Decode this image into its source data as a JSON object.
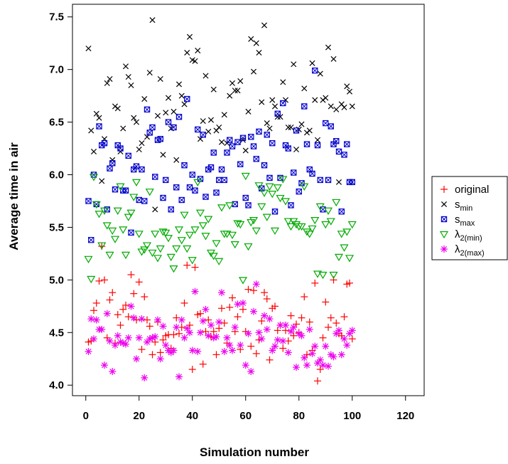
{
  "chart_data": {
    "type": "scatter",
    "title": "",
    "xlabel": "Simulation number",
    "ylabel": "Average time in air",
    "xlim": [
      -5,
      127
    ],
    "ylim": [
      3.9,
      7.62
    ],
    "xticks": [
      0,
      20,
      40,
      60,
      80,
      100,
      120
    ],
    "yticks": [
      4.0,
      4.5,
      5.0,
      5.5,
      6.0,
      6.5,
      7.0,
      7.5
    ],
    "ytick_labels": [
      "4.0",
      "4.5",
      "5.0",
      "5.5",
      "6.0",
      "6.5",
      "7.0",
      "7.5"
    ],
    "grid": false,
    "legend_position": "right",
    "series": [
      {
        "name": "original",
        "legend_main": "original",
        "legend_sub": "",
        "marker": "plus",
        "color": "#ff0000",
        "x": [
          1,
          2,
          3,
          4,
          5,
          6,
          7,
          8,
          9,
          10,
          11,
          12,
          13,
          14,
          15,
          16,
          17,
          18,
          19,
          20,
          21,
          22,
          23,
          24,
          25,
          26,
          27,
          28,
          29,
          30,
          31,
          32,
          33,
          34,
          35,
          36,
          37,
          38,
          39,
          40,
          41,
          42,
          43,
          44,
          45,
          46,
          47,
          48,
          49,
          50,
          51,
          52,
          53,
          54,
          55,
          56,
          57,
          58,
          59,
          60,
          61,
          62,
          63,
          64,
          65,
          66,
          67,
          68,
          69,
          70,
          71,
          72,
          73,
          74,
          75,
          76,
          77,
          78,
          79,
          80,
          81,
          82,
          83,
          84,
          85,
          86,
          87,
          88,
          89,
          90,
          91,
          92,
          93,
          94,
          95,
          96,
          97,
          98,
          99,
          100
        ],
        "y": [
          4.41,
          4.42,
          4.71,
          4.78,
          4.99,
          5.32,
          5.0,
          4.45,
          4.81,
          4.88,
          4.4,
          4.67,
          4.57,
          4.72,
          4.76,
          4.65,
          5.05,
          4.87,
          4.62,
          4.98,
          4.34,
          4.84,
          4.62,
          4.56,
          4.29,
          4.41,
          4.6,
          4.31,
          4.43,
          4.47,
          4.48,
          4.35,
          4.48,
          4.64,
          4.49,
          4.55,
          4.78,
          5.14,
          4.57,
          4.15,
          5.12,
          4.67,
          4.68,
          4.2,
          4.51,
          4.62,
          4.46,
          4.51,
          4.29,
          4.54,
          4.73,
          4.59,
          4.4,
          4.74,
          4.83,
          4.51,
          4.65,
          4.34,
          4.72,
          4.51,
          4.91,
          4.37,
          4.9,
          4.3,
          4.43,
          4.61,
          4.88,
          4.82,
          4.24,
          4.73,
          4.75,
          4.52,
          4.57,
          4.35,
          4.52,
          4.42,
          4.66,
          4.47,
          4.58,
          4.5,
          4.64,
          4.84,
          4.29,
          4.6,
          4.33,
          4.97,
          4.04,
          4.15,
          4.45,
          4.79,
          4.55,
          4.64,
          5.0,
          4.59,
          4.49,
          4.47,
          4.65,
          4.96,
          4.97,
          4.44
        ]
      },
      {
        "name": "s_min",
        "legend_main": "s",
        "legend_sub": "min",
        "marker": "x",
        "color": "#000000",
        "x": [
          1,
          2,
          3,
          4,
          5,
          6,
          7,
          8,
          9,
          10,
          11,
          12,
          13,
          14,
          15,
          16,
          17,
          18,
          19,
          20,
          21,
          22,
          23,
          24,
          25,
          26,
          27,
          28,
          29,
          30,
          31,
          32,
          33,
          34,
          35,
          36,
          37,
          38,
          39,
          40,
          41,
          42,
          43,
          44,
          45,
          46,
          47,
          48,
          49,
          50,
          51,
          52,
          53,
          54,
          55,
          56,
          57,
          58,
          59,
          60,
          61,
          62,
          63,
          64,
          65,
          66,
          67,
          68,
          69,
          70,
          71,
          72,
          73,
          74,
          75,
          76,
          77,
          78,
          79,
          80,
          81,
          82,
          83,
          84,
          85,
          86,
          87,
          88,
          89,
          90,
          91,
          92,
          93,
          94,
          95,
          96,
          97,
          98,
          99,
          100
        ],
        "y": [
          7.2,
          6.42,
          6.22,
          6.58,
          6.54,
          5.94,
          6.34,
          6.87,
          6.91,
          6.14,
          6.65,
          6.63,
          6.22,
          6.44,
          7.03,
          6.93,
          6.85,
          6.54,
          6.5,
          6.24,
          6.3,
          6.72,
          6.36,
          6.97,
          7.47,
          5.67,
          6.56,
          6.91,
          6.19,
          6.59,
          6.73,
          6.44,
          6.6,
          6.14,
          6.86,
          6.75,
          6.67,
          7.16,
          7.31,
          7.09,
          7.08,
          7.18,
          6.34,
          6.51,
          6.94,
          6.41,
          6.52,
          6.81,
          6.42,
          6.45,
          6.31,
          6.57,
          6.3,
          6.75,
          6.87,
          6.8,
          6.8,
          6.89,
          6.33,
          6.23,
          6.6,
          7.29,
          6.98,
          7.25,
          7.16,
          6.69,
          7.42,
          6.49,
          6.44,
          6.71,
          6.65,
          6.55,
          6.55,
          6.88,
          6.71,
          6.45,
          6.45,
          7.05,
          6.24,
          6.43,
          6.48,
          6.82,
          6.4,
          6.42,
          7.06,
          6.71,
          6.33,
          6.96,
          6.71,
          6.73,
          7.21,
          6.65,
          7.1,
          6.62,
          5.93,
          6.67,
          6.64,
          6.84,
          6.79,
          6.65
        ]
      },
      {
        "name": "s_max",
        "legend_main": "s",
        "legend_sub": "max",
        "marker": "boxed-x",
        "color": "#0000cc",
        "x": [
          1,
          2,
          3,
          4,
          5,
          6,
          7,
          8,
          9,
          10,
          11,
          12,
          13,
          14,
          15,
          16,
          17,
          18,
          19,
          20,
          21,
          22,
          23,
          24,
          25,
          26,
          27,
          28,
          29,
          30,
          31,
          32,
          33,
          34,
          35,
          36,
          37,
          38,
          39,
          40,
          41,
          42,
          43,
          44,
          45,
          46,
          47,
          48,
          49,
          50,
          51,
          52,
          53,
          54,
          55,
          56,
          57,
          58,
          59,
          60,
          61,
          62,
          63,
          64,
          65,
          66,
          67,
          68,
          69,
          70,
          71,
          72,
          73,
          74,
          75,
          76,
          77,
          78,
          79,
          80,
          81,
          82,
          83,
          84,
          85,
          86,
          87,
          88,
          89,
          90,
          91,
          92,
          93,
          94,
          95,
          96,
          97,
          98,
          99,
          100
        ],
        "y": [
          5.75,
          5.38,
          6.0,
          5.72,
          6.46,
          6.28,
          6.3,
          5.67,
          6.06,
          6.11,
          5.86,
          6.28,
          6.25,
          5.85,
          5.85,
          6.18,
          5.45,
          6.05,
          6.08,
          5.76,
          6.05,
          5.75,
          6.62,
          6.4,
          6.45,
          5.98,
          6.33,
          6.34,
          5.78,
          5.95,
          6.5,
          5.67,
          6.45,
          5.88,
          6.55,
          5.76,
          6.09,
          6.72,
          5.88,
          6.0,
          5.85,
          6.43,
          5.96,
          6.38,
          5.79,
          6.05,
          6.07,
          6.21,
          5.83,
          5.95,
          6.05,
          5.95,
          6.21,
          6.33,
          6.27,
          5.72,
          6.31,
          6.1,
          6.35,
          5.78,
          5.71,
          6.36,
          6.27,
          6.15,
          6.41,
          5.87,
          6.09,
          6.38,
          5.97,
          6.3,
          5.65,
          6.58,
          5.97,
          6.68,
          6.28,
          6.25,
          5.71,
          6.02,
          6.42,
          5.84,
          5.92,
          6.65,
          6.29,
          6.05,
          6.01,
          6.99,
          6.28,
          5.95,
          5.67,
          6.49,
          5.95,
          6.46,
          6.29,
          6.32,
          6.22,
          5.65,
          6.19,
          6.29,
          5.93,
          5.93
        ]
      },
      {
        "name": "lambda_2(min)",
        "legend_main": "λ",
        "legend_sub": "2(min)",
        "marker": "triangle-down",
        "color": "#00aa00",
        "x": [
          1,
          2,
          3,
          4,
          5,
          6,
          7,
          8,
          9,
          10,
          11,
          12,
          13,
          14,
          15,
          16,
          17,
          18,
          19,
          20,
          21,
          22,
          23,
          24,
          25,
          26,
          27,
          28,
          29,
          30,
          31,
          32,
          33,
          34,
          35,
          36,
          37,
          38,
          39,
          40,
          41,
          42,
          43,
          44,
          45,
          46,
          47,
          48,
          49,
          50,
          51,
          52,
          53,
          54,
          55,
          56,
          57,
          58,
          59,
          60,
          61,
          62,
          63,
          64,
          65,
          66,
          67,
          68,
          69,
          70,
          71,
          72,
          73,
          74,
          75,
          76,
          77,
          78,
          79,
          80,
          81,
          82,
          83,
          84,
          85,
          86,
          87,
          88,
          89,
          90,
          91,
          92,
          93,
          94,
          95,
          96,
          97,
          98,
          99,
          100
        ],
        "y": [
          5.2,
          5.01,
          5.98,
          5.72,
          5.63,
          5.33,
          5.66,
          5.52,
          5.24,
          5.47,
          5.39,
          5.66,
          5.89,
          5.48,
          5.24,
          5.6,
          5.64,
          5.79,
          5.93,
          5.44,
          5.27,
          5.29,
          5.33,
          5.84,
          5.26,
          5.44,
          5.21,
          5.3,
          5.46,
          5.45,
          5.4,
          5.22,
          5.11,
          5.3,
          5.48,
          5.38,
          5.62,
          5.3,
          5.43,
          5.19,
          5.48,
          5.93,
          5.64,
          5.52,
          5.42,
          5.58,
          5.26,
          5.23,
          5.35,
          5.18,
          5.69,
          5.44,
          5.44,
          5.71,
          5.43,
          5.34,
          5.54,
          5.53,
          5.0,
          5.99,
          5.32,
          5.55,
          5.57,
          5.47,
          5.9,
          5.7,
          5.83,
          5.6,
          5.89,
          5.82,
          5.47,
          5.88,
          5.78,
          5.96,
          5.75,
          5.56,
          5.51,
          5.56,
          5.53,
          5.51,
          5.51,
          5.89,
          5.46,
          5.44,
          5.49,
          5.57,
          5.06,
          5.7,
          5.05,
          5.53,
          5.66,
          5.56,
          5.05,
          5.74,
          5.22,
          5.44,
          5.31,
          5.46,
          5.21,
          5.53
        ]
      },
      {
        "name": "lambda_2(max)",
        "legend_main": "λ",
        "legend_sub": "2(max)",
        "marker": "asterisk",
        "color": "#ee00ee",
        "x": [
          1,
          2,
          3,
          4,
          5,
          6,
          7,
          8,
          9,
          10,
          11,
          12,
          13,
          14,
          15,
          16,
          17,
          18,
          19,
          20,
          21,
          22,
          23,
          24,
          25,
          26,
          27,
          28,
          29,
          30,
          31,
          32,
          33,
          34,
          35,
          36,
          37,
          38,
          39,
          40,
          41,
          42,
          43,
          44,
          45,
          46,
          47,
          48,
          49,
          50,
          51,
          52,
          53,
          54,
          55,
          56,
          57,
          58,
          59,
          60,
          61,
          62,
          63,
          64,
          65,
          66,
          67,
          68,
          69,
          70,
          71,
          72,
          73,
          74,
          75,
          76,
          77,
          78,
          79,
          80,
          81,
          82,
          83,
          84,
          85,
          86,
          87,
          88,
          89,
          90,
          91,
          92,
          93,
          94,
          95,
          96,
          97,
          98,
          99,
          100
        ],
        "y": [
          4.32,
          4.63,
          4.44,
          4.62,
          4.53,
          4.53,
          4.19,
          4.68,
          4.42,
          4.13,
          4.38,
          4.47,
          4.41,
          4.4,
          4.39,
          4.45,
          4.75,
          4.64,
          4.25,
          4.45,
          4.63,
          4.07,
          4.41,
          4.44,
          4.45,
          4.46,
          4.62,
          4.25,
          4.56,
          4.38,
          4.33,
          4.31,
          4.33,
          4.55,
          4.08,
          4.62,
          4.45,
          4.54,
          4.5,
          4.33,
          4.89,
          4.32,
          4.5,
          4.61,
          4.72,
          4.47,
          4.57,
          4.45,
          4.46,
          4.6,
          4.88,
          4.32,
          4.45,
          4.38,
          4.33,
          4.55,
          4.77,
          4.38,
          4.78,
          4.19,
          4.49,
          4.13,
          4.7,
          4.96,
          4.5,
          4.44,
          4.66,
          4.53,
          4.63,
          4.33,
          4.37,
          4.43,
          4.57,
          4.42,
          4.57,
          4.31,
          4.51,
          4.55,
          4.17,
          4.49,
          4.47,
          4.26,
          4.19,
          4.53,
          4.3,
          4.37,
          4.21,
          4.24,
          4.19,
          4.37,
          4.18,
          4.29,
          4.27,
          4.49,
          4.52,
          4.29,
          4.44,
          4.38,
          4.49,
          4.52
        ]
      }
    ]
  }
}
